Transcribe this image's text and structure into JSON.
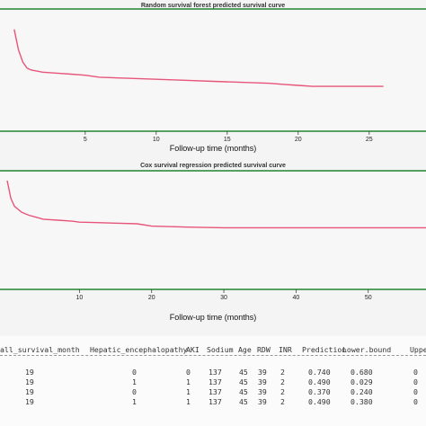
{
  "chart_data": [
    {
      "type": "line",
      "title": "Random survival forest predicted survival curve",
      "xlabel": "Follow-up time (months)",
      "ylabel": "",
      "xlim": [
        -1,
        29
      ],
      "ylim": [
        0.4,
        1.0
      ],
      "xticks": [
        5,
        10,
        15,
        20,
        25
      ],
      "grid": false,
      "series": [
        {
          "x": [
            0,
            0.3,
            0.6,
            0.9,
            1.2,
            1.6,
            2,
            3,
            4,
            5,
            6,
            8,
            10,
            12,
            14,
            16,
            18,
            19,
            20,
            21,
            22,
            24,
            26
          ],
          "y": [
            0.9,
            0.8,
            0.74,
            0.71,
            0.7,
            0.695,
            0.69,
            0.685,
            0.68,
            0.675,
            0.665,
            0.66,
            0.655,
            0.65,
            0.645,
            0.64,
            0.635,
            0.63,
            0.625,
            0.62,
            0.62,
            0.62,
            0.62
          ],
          "color": "#e8557a"
        }
      ]
    },
    {
      "type": "line",
      "title": "Cox survival regression predicted survival curve",
      "xlabel": "Follow-up time (months)",
      "ylabel": "",
      "xlim": [
        -1,
        58
      ],
      "ylim": [
        0.4,
        1.0
      ],
      "xticks": [
        10,
        20,
        30,
        40,
        50
      ],
      "grid": false,
      "series": [
        {
          "x": [
            0,
            0.5,
            1,
            2,
            3,
            4,
            5,
            7,
            9,
            10,
            12,
            15,
            18,
            20,
            25,
            30,
            35,
            40,
            45,
            50,
            55,
            58
          ],
          "y": [
            0.95,
            0.86,
            0.82,
            0.79,
            0.775,
            0.765,
            0.755,
            0.75,
            0.745,
            0.74,
            0.738,
            0.735,
            0.732,
            0.72,
            0.715,
            0.712,
            0.712,
            0.712,
            0.712,
            0.712,
            0.712,
            0.712
          ],
          "color": "#e8557a"
        }
      ]
    }
  ],
  "table": {
    "headers": [
      "all_survival_month",
      "Hepatic_encephalopathy",
      "AKI",
      "Sodium",
      "Age",
      "RDW",
      "INR",
      "Prediction",
      "Lower.bound",
      "Uppe"
    ],
    "rows": [
      [
        "19",
        "0",
        "0",
        "137",
        "45",
        "39",
        "2",
        "0.740",
        "0.680",
        "0"
      ],
      [
        "19",
        "1",
        "1",
        "137",
        "45",
        "39",
        "2",
        "0.490",
        "0.029",
        "0"
      ],
      [
        "19",
        "0",
        "1",
        "137",
        "45",
        "39",
        "2",
        "0.370",
        "0.240",
        "0"
      ],
      [
        "19",
        "1",
        "1",
        "137",
        "45",
        "39",
        "2",
        "0.490",
        "0.380",
        "0"
      ]
    ]
  }
}
